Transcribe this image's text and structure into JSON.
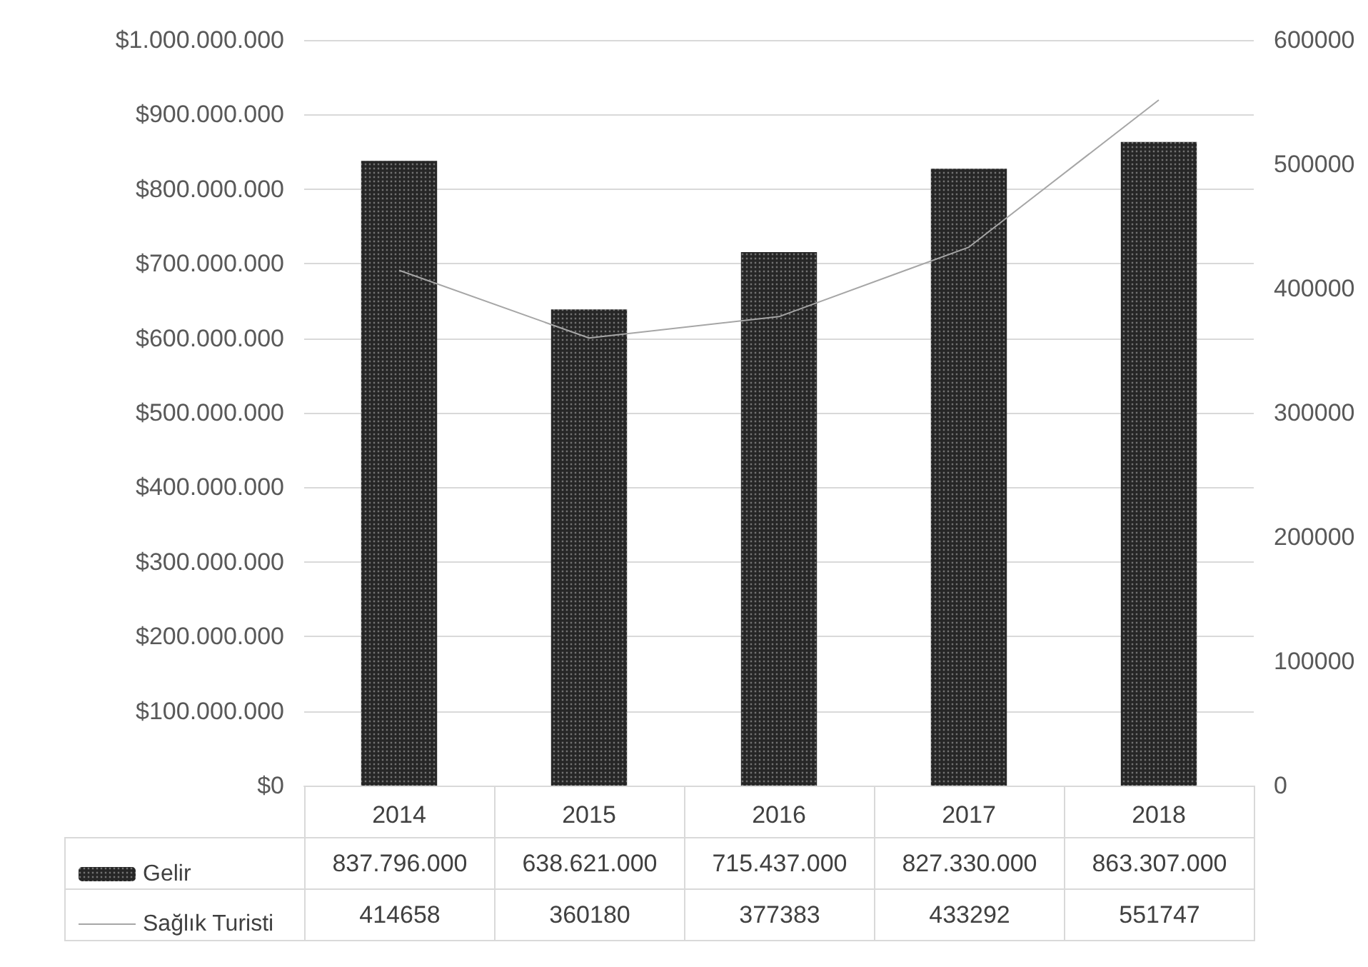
{
  "chart_data": {
    "type": "bar",
    "categories": [
      "2014",
      "2015",
      "2016",
      "2017",
      "2018"
    ],
    "series": [
      {
        "name": "Gelir",
        "color": "#262626",
        "values": [
          837796000,
          638621000,
          715437000,
          827330000,
          863307000
        ],
        "value_labels": [
          "837.796.000",
          "638.621.000",
          "715.437.000",
          "827.330.000",
          "863.307.000"
        ]
      },
      {
        "name": "Sağlık Turisti",
        "type": "line",
        "axis": "y2",
        "color": "#a6a6a6",
        "values": [
          414658,
          360180,
          377383,
          433292,
          551747
        ],
        "value_labels": [
          "414658",
          "360180",
          "377383",
          "433292",
          "551747"
        ]
      }
    ],
    "ylim": [
      0,
      1000000000
    ],
    "yticks": [
      {
        "value": 0,
        "label": "$0"
      },
      {
        "value": 100000000,
        "label": "$100.000.000"
      },
      {
        "value": 200000000,
        "label": "$200.000.000"
      },
      {
        "value": 300000000,
        "label": "$300.000.000"
      },
      {
        "value": 400000000,
        "label": "$400.000.000"
      },
      {
        "value": 500000000,
        "label": "$500.000.000"
      },
      {
        "value": 600000000,
        "label": "$600.000.000"
      },
      {
        "value": 700000000,
        "label": "$700.000.000"
      },
      {
        "value": 800000000,
        "label": "$800.000.000"
      },
      {
        "value": 900000000,
        "label": "$900.000.000"
      },
      {
        "value": 1000000000,
        "label": "$1.000.000.000"
      }
    ],
    "y2lim": [
      0,
      600000
    ],
    "y2ticks": [
      0,
      100000,
      200000,
      300000,
      400000,
      500000,
      600000
    ],
    "grid": "y",
    "legend": "bottom left",
    "marker": "none",
    "line_style": "solid"
  }
}
